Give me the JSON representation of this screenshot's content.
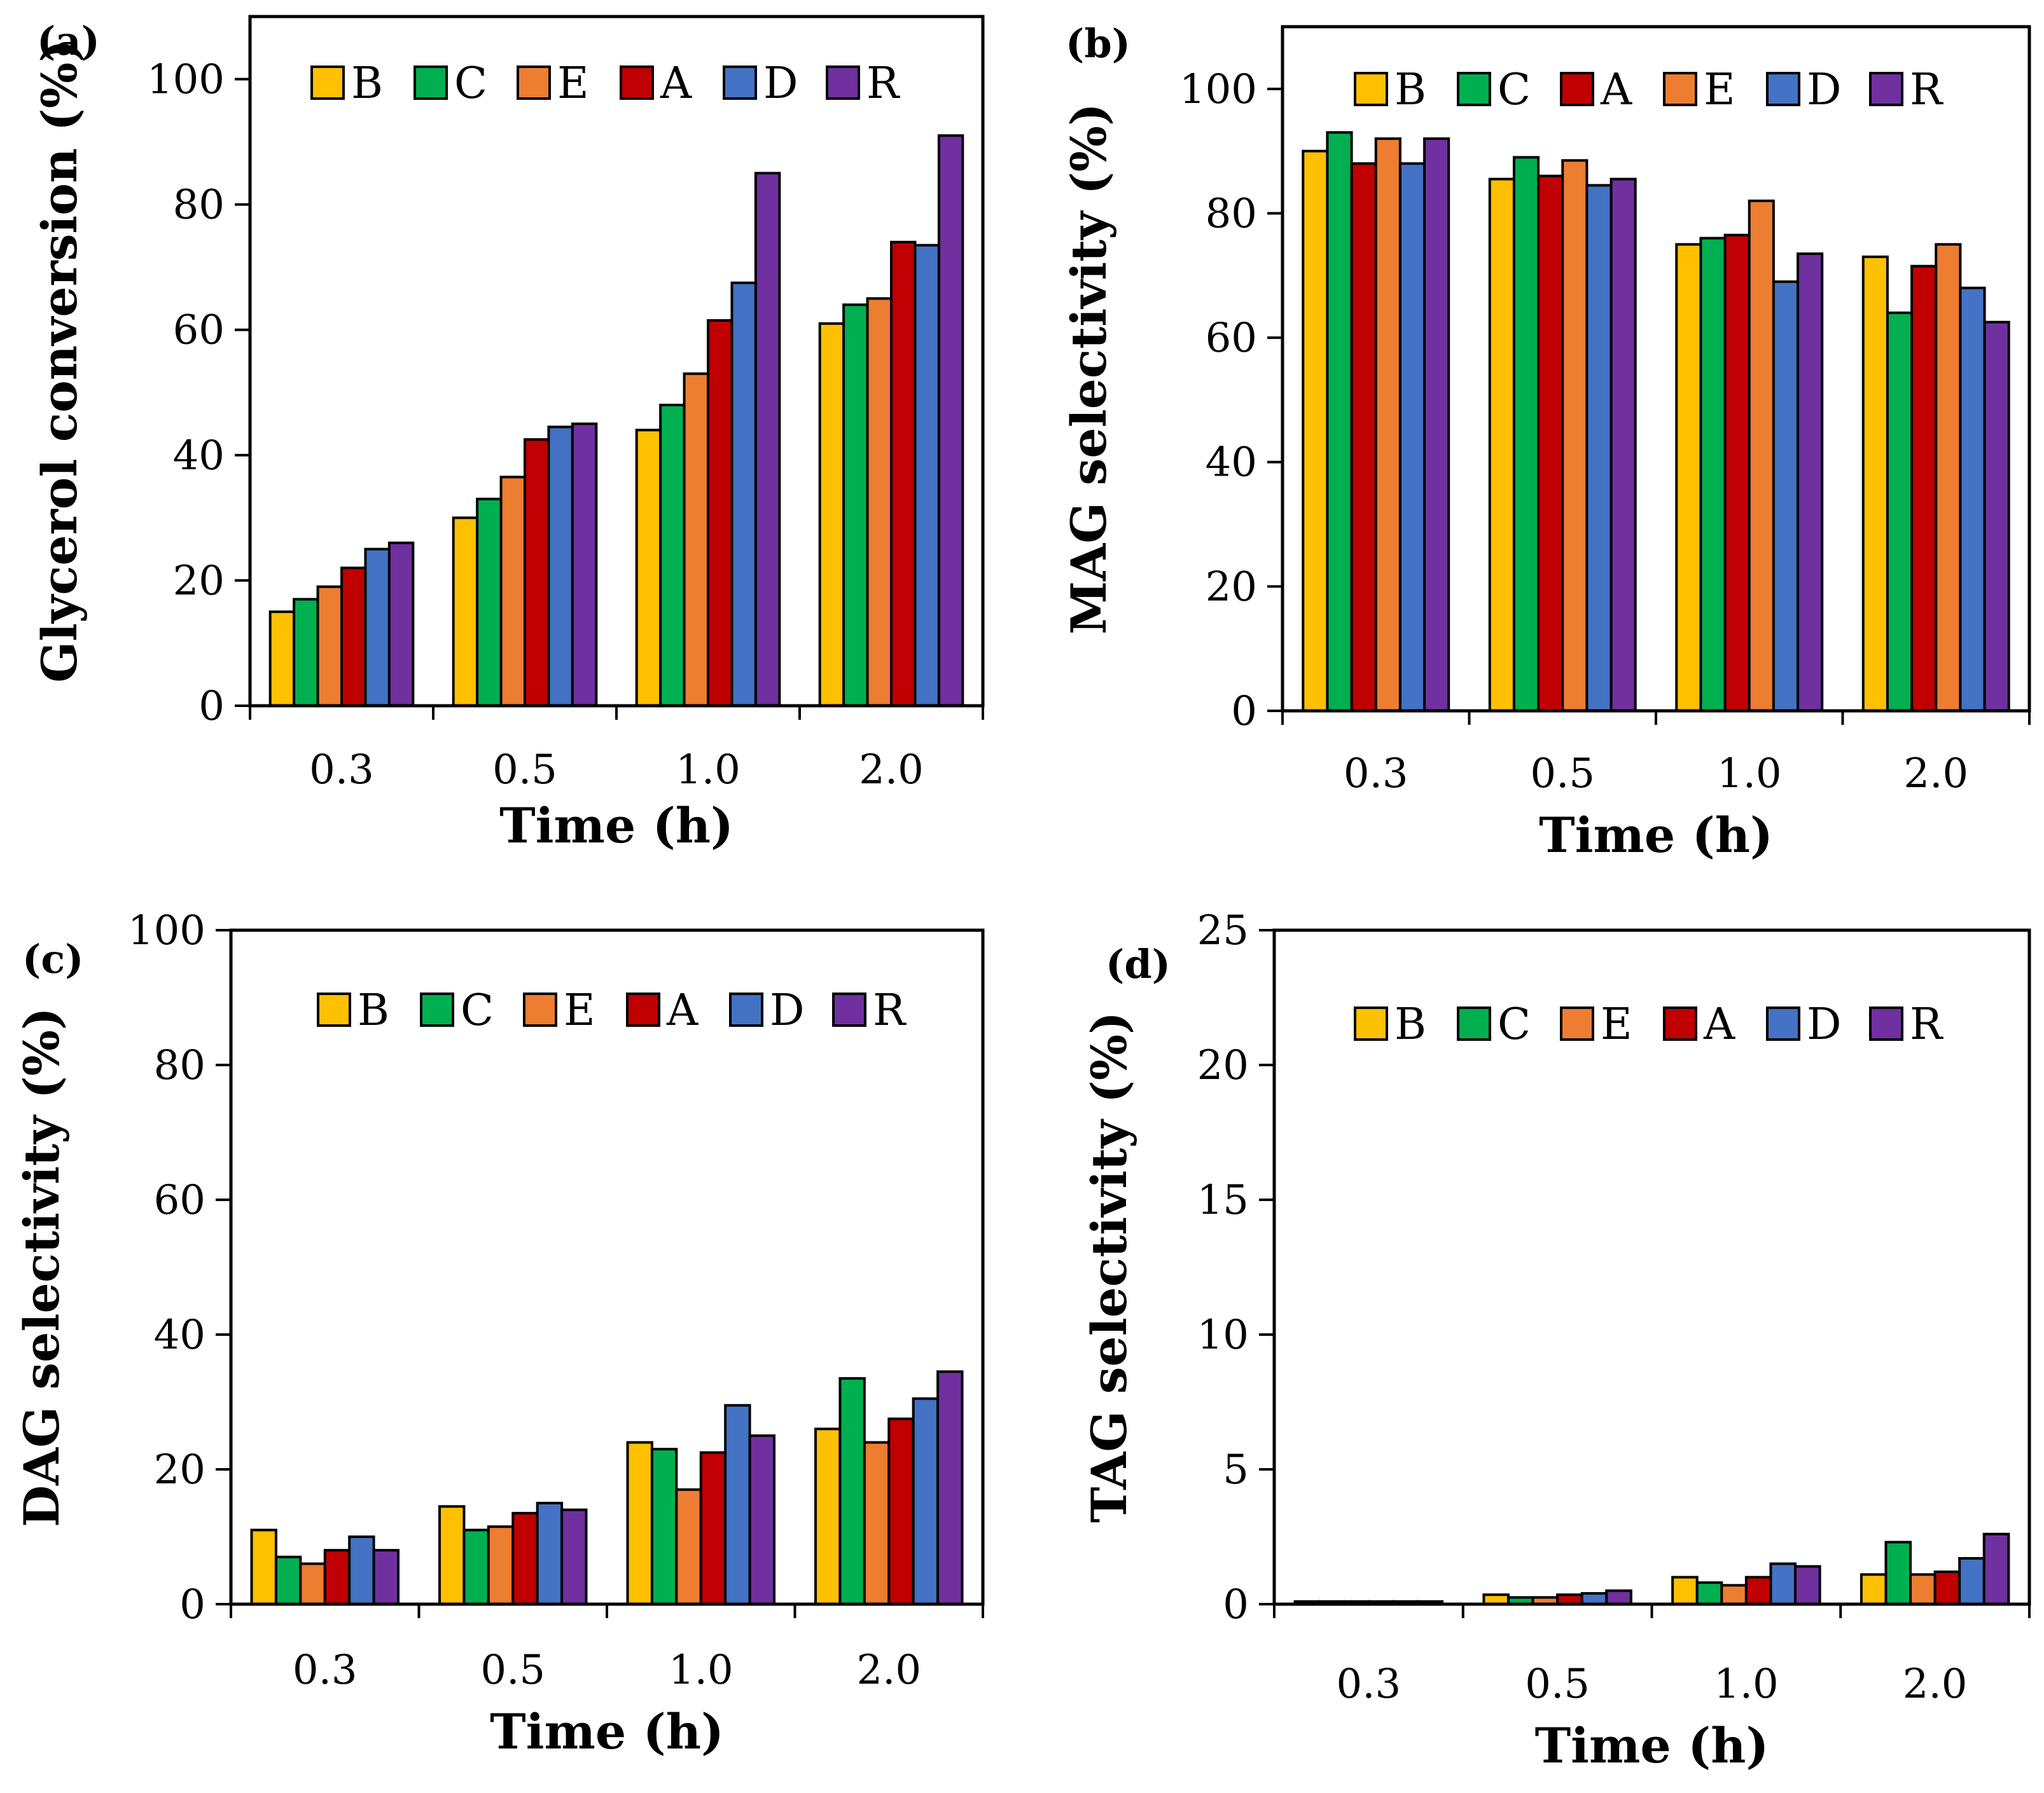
{
  "colors": {
    "A": "#c00000",
    "B": "#ffc000",
    "C": "#00b050",
    "D": "#4472c4",
    "E": "#ed7d31",
    "R": "#7030a0"
  },
  "chart_data": [
    {
      "type": "bar",
      "panel_label": "(a)",
      "categories": [
        "0.3",
        "0.5",
        "1.0",
        "2.0"
      ],
      "xlabel": "Time (h)",
      "ylabel": "Glycerol conversion (%)",
      "ylim": [
        0,
        110
      ],
      "yticks": [
        0,
        20,
        40,
        60,
        80,
        100
      ],
      "legend_order": [
        "B",
        "C",
        "E",
        "A",
        "D",
        "R"
      ],
      "series": [
        {
          "name": "B",
          "values": [
            15,
            30,
            44,
            61
          ]
        },
        {
          "name": "C",
          "values": [
            17,
            33,
            48,
            64
          ]
        },
        {
          "name": "E",
          "values": [
            19,
            36.5,
            53,
            65
          ]
        },
        {
          "name": "A",
          "values": [
            22,
            42.5,
            61.5,
            74
          ]
        },
        {
          "name": "D",
          "values": [
            25,
            44.5,
            67.5,
            73.5
          ]
        },
        {
          "name": "R",
          "values": [
            26,
            45,
            85,
            91
          ]
        }
      ]
    },
    {
      "type": "bar",
      "panel_label": "(b)",
      "categories": [
        "0.3",
        "0.5",
        "1.0",
        "2.0"
      ],
      "xlabel": "Time (h)",
      "ylabel": "MAG selectivity (%)",
      "ylim": [
        0,
        110
      ],
      "yticks": [
        0,
        20,
        40,
        60,
        80,
        100
      ],
      "legend_order": [
        "B",
        "C",
        "A",
        "E",
        "D",
        "R"
      ],
      "series": [
        {
          "name": "B",
          "values": [
            90,
            85.5,
            75,
            73
          ]
        },
        {
          "name": "C",
          "values": [
            93,
            89,
            76,
            64
          ]
        },
        {
          "name": "A",
          "values": [
            88,
            86,
            76.5,
            71.5
          ]
        },
        {
          "name": "E",
          "values": [
            92,
            88.5,
            82,
            75
          ]
        },
        {
          "name": "D",
          "values": [
            88,
            84.5,
            69,
            68
          ]
        },
        {
          "name": "R",
          "values": [
            92,
            85.5,
            73.5,
            62.5
          ]
        }
      ]
    },
    {
      "type": "bar",
      "panel_label": "(c)",
      "categories": [
        "0.3",
        "0.5",
        "1.0",
        "2.0"
      ],
      "xlabel": "Time (h)",
      "ylabel": "DAG selectivity (%)",
      "ylim": [
        0,
        100
      ],
      "yticks": [
        0,
        20,
        40,
        60,
        80,
        100
      ],
      "legend_order": [
        "B",
        "C",
        "E",
        "A",
        "D",
        "R"
      ],
      "series": [
        {
          "name": "B",
          "values": [
            11,
            14.5,
            24,
            26
          ]
        },
        {
          "name": "C",
          "values": [
            7,
            11,
            23,
            33.5
          ]
        },
        {
          "name": "E",
          "values": [
            6,
            11.5,
            17,
            24
          ]
        },
        {
          "name": "A",
          "values": [
            8,
            13.5,
            22.5,
            27.5
          ]
        },
        {
          "name": "D",
          "values": [
            10,
            15,
            29.5,
            30.5
          ]
        },
        {
          "name": "R",
          "values": [
            8,
            14,
            25,
            34.5
          ]
        }
      ]
    },
    {
      "type": "bar",
      "panel_label": "(d)",
      "categories": [
        "0.3",
        "0.5",
        "1.0",
        "2.0"
      ],
      "xlabel": "Time (h)",
      "ylabel": "TAG selectivity (%)",
      "ylim": [
        0,
        25
      ],
      "yticks": [
        0,
        5,
        10,
        15,
        20,
        25
      ],
      "legend_order": [
        "B",
        "C",
        "E",
        "A",
        "D",
        "R"
      ],
      "series": [
        {
          "name": "B",
          "values": [
            0.1,
            0.35,
            1.0,
            1.1
          ]
        },
        {
          "name": "C",
          "values": [
            0.1,
            0.25,
            0.8,
            2.3
          ]
        },
        {
          "name": "E",
          "values": [
            0.1,
            0.25,
            0.7,
            1.1
          ]
        },
        {
          "name": "A",
          "values": [
            0.1,
            0.35,
            1.0,
            1.2
          ]
        },
        {
          "name": "D",
          "values": [
            0.1,
            0.4,
            1.5,
            1.7
          ]
        },
        {
          "name": "R",
          "values": [
            0.1,
            0.5,
            1.4,
            2.6
          ]
        }
      ]
    }
  ]
}
